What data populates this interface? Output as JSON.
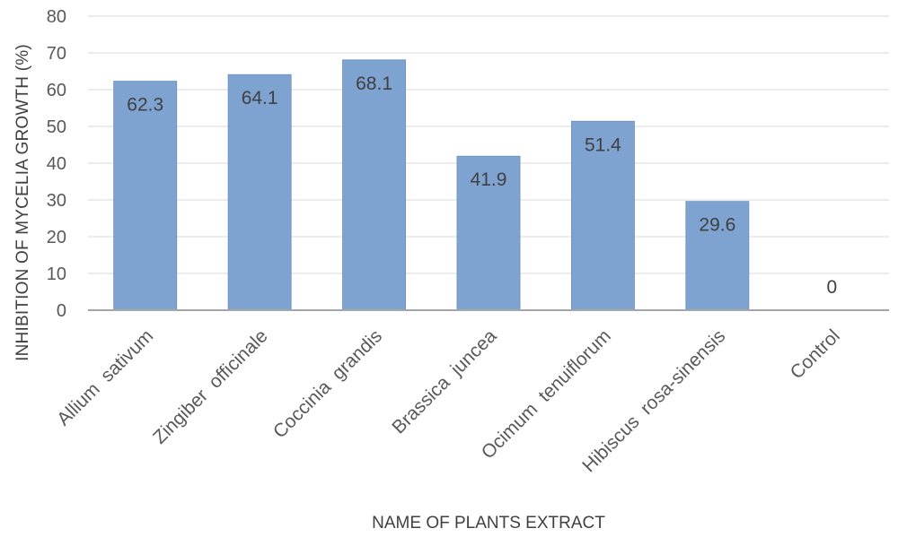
{
  "chart_data": {
    "type": "bar",
    "title": "",
    "xlabel": "NAME OF PLANTS EXTRACT",
    "ylabel": "INHIBITION OF MYCELIA GROWTH (%)",
    "ylim": [
      0,
      80
    ],
    "yticks": [
      "0",
      "10",
      "20",
      "30",
      "40",
      "50",
      "60",
      "70",
      "80"
    ],
    "grid": true,
    "legend": "none",
    "categories": [
      "Allium  sativum",
      "Zingiber  officinale",
      "Coccinia  grandis",
      "Brassica  juncea",
      "Ocimum  tenuiflorum",
      "Hibiscus  rosa-sinensis",
      "Control"
    ],
    "values": [
      62.3,
      64.1,
      68.1,
      41.9,
      51.4,
      29.6,
      0
    ],
    "data_labels": [
      "62.3",
      "64.1",
      "68.1",
      "41.9",
      "51.4",
      "29.6",
      "0"
    ],
    "colors": {
      "bar": "#7ea3d1",
      "bar_edge": "#6b8fbd",
      "grid": "#d9d9d9",
      "axis": "#a6a6a6"
    }
  }
}
